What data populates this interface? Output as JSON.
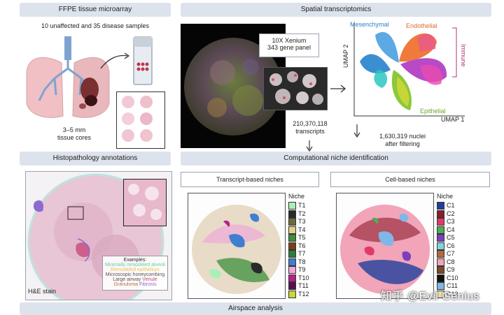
{
  "panels": {
    "ffpe_title": "FFPE tissue microarray",
    "ffpe_samples": "10 unaffected and 35 disease samples",
    "core_size": "3–5 mm",
    "core_label": "tissue cores",
    "spatial_title": "Spatial transcriptomics",
    "xenium_line1": "10X Xenium",
    "xenium_line2": "343 gene panel",
    "transcripts_count": "210,370,118",
    "transcripts_label": "transcripts",
    "nuclei_count": "1,630,319 nuclei",
    "nuclei_label": "after filtering",
    "histo_title": "Histopathology annotations",
    "comp_title": "Computational niche identification",
    "transcript_niches_title": "Transcript-based niches",
    "cell_niches_title": "Cell-based niches",
    "he_label": "H&E stain",
    "airspace_title": "Airspace analysis"
  },
  "umap": {
    "xlabel": "UMAP 1",
    "ylabel": "UMAP 2",
    "labels": {
      "mesenchymal": "Mesenchymal",
      "endothelial": "Endothelial",
      "immune": "Immune",
      "epithelial": "Epithelial"
    }
  },
  "annotation_examples": {
    "title": "Examples:",
    "line1": "Minimally remodeled alveoli",
    "line2": "Remodeled epithelium",
    "line3": "Microscopic honeycombing",
    "line4a": "Large airway",
    "line4b": "Venule",
    "line5a": "Granuloma",
    "line5b": "Fibrosis"
  },
  "transcript_legend": {
    "title": "Niche",
    "items": [
      {
        "label": "T1",
        "color": "#a8f0b8"
      },
      {
        "label": "T2",
        "color": "#2a2a2a"
      },
      {
        "label": "T3",
        "color": "#6b6b3a"
      },
      {
        "label": "T4",
        "color": "#e6cf8c"
      },
      {
        "label": "T5",
        "color": "#3c8f3c"
      },
      {
        "label": "T6",
        "color": "#7a3f1c"
      },
      {
        "label": "T7",
        "color": "#2e7d3a"
      },
      {
        "label": "T8",
        "color": "#3f7fd0"
      },
      {
        "label": "T9",
        "color": "#f0a8d8"
      },
      {
        "label": "T10",
        "color": "#b8208c"
      },
      {
        "label": "T11",
        "color": "#5a1050"
      },
      {
        "label": "T12",
        "color": "#c6d83a"
      }
    ]
  },
  "cell_legend": {
    "title": "Niche",
    "items": [
      {
        "label": "C1",
        "color": "#1f3f9c"
      },
      {
        "label": "C2",
        "color": "#8c1c2c"
      },
      {
        "label": "C3",
        "color": "#e03a6a"
      },
      {
        "label": "C4",
        "color": "#4caf50"
      },
      {
        "label": "C5",
        "color": "#7b3fbf"
      },
      {
        "label": "C6",
        "color": "#7fd6e0"
      },
      {
        "label": "C7",
        "color": "#b06a3c"
      },
      {
        "label": "C8",
        "color": "#f2a4b8"
      },
      {
        "label": "C9",
        "color": "#7a4a2a"
      },
      {
        "label": "C10",
        "color": "#111111"
      },
      {
        "label": "C11",
        "color": "#7fb8e8"
      },
      {
        "label": "C12",
        "color": "#f0e2a0"
      }
    ]
  },
  "watermark": "知乎 @Evil Genius"
}
